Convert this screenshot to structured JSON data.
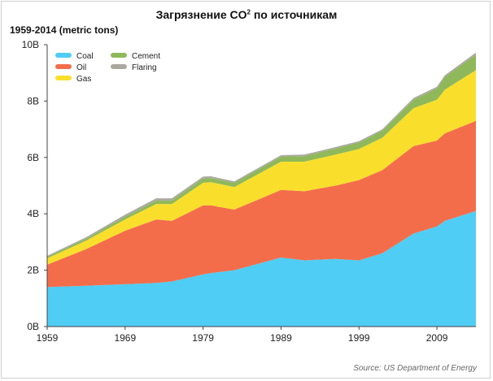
{
  "header": {
    "title_main": "Загрязнение CO",
    "title_sup": "2",
    "title_tail": " по источникам",
    "subtitle": "1959-2014 (metric tons)"
  },
  "source": "Source: US Department of Energy",
  "colors": {
    "Coal": "#4fcdf4",
    "Oil": "#f46d4b",
    "Gas": "#f9df2c",
    "Cement": "#8fb85a",
    "Flaring": "#a9a9a0"
  },
  "chart_data": {
    "type": "area",
    "stacked": true,
    "title": "Загрязнение CO2 по источникам",
    "subtitle": "1959-2014 (metric tons)",
    "xlim": [
      1959,
      2014
    ],
    "ylim": [
      0,
      10
    ],
    "x_ticks": [
      1959,
      1969,
      1979,
      1989,
      1999,
      2009
    ],
    "x_tick_labels": [
      "1959",
      "1969",
      "1979",
      "1989",
      "1999",
      "2009"
    ],
    "y_ticks": [
      0,
      2,
      4,
      6,
      8,
      10
    ],
    "y_tick_labels": [
      "0B",
      "2B",
      "4B",
      "6B",
      "8B",
      "10B"
    ],
    "legend_position": "top-left",
    "x": [
      1959,
      1964,
      1969,
      1973,
      1975,
      1979,
      1980,
      1983,
      1989,
      1992,
      1996,
      1999,
      2002,
      2006,
      2009,
      2010,
      2014
    ],
    "series": [
      {
        "name": "Coal",
        "values": [
          1.4,
          1.45,
          1.5,
          1.55,
          1.6,
          1.85,
          1.9,
          2.0,
          2.45,
          2.35,
          2.4,
          2.35,
          2.6,
          3.3,
          3.55,
          3.75,
          4.1
        ]
      },
      {
        "name": "Oil",
        "values": [
          0.8,
          1.3,
          1.9,
          2.25,
          2.15,
          2.45,
          2.4,
          2.15,
          2.4,
          2.45,
          2.6,
          2.85,
          2.95,
          3.1,
          3.05,
          3.1,
          3.2
        ]
      },
      {
        "name": "Gas",
        "values": [
          0.22,
          0.3,
          0.4,
          0.55,
          0.6,
          0.8,
          0.82,
          0.8,
          1.0,
          1.05,
          1.1,
          1.1,
          1.15,
          1.35,
          1.45,
          1.55,
          1.8
        ]
      },
      {
        "name": "Cement",
        "values": [
          0.05,
          0.07,
          0.1,
          0.12,
          0.12,
          0.15,
          0.15,
          0.15,
          0.18,
          0.2,
          0.22,
          0.23,
          0.25,
          0.3,
          0.4,
          0.45,
          0.55
        ]
      },
      {
        "name": "Flaring",
        "values": [
          0.04,
          0.05,
          0.07,
          0.08,
          0.08,
          0.07,
          0.06,
          0.05,
          0.05,
          0.05,
          0.05,
          0.05,
          0.05,
          0.06,
          0.06,
          0.06,
          0.07
        ]
      }
    ],
    "legend": [
      {
        "name": "Coal",
        "column": 0,
        "row": 0
      },
      {
        "name": "Oil",
        "column": 0,
        "row": 1
      },
      {
        "name": "Gas",
        "column": 0,
        "row": 2
      },
      {
        "name": "Cement",
        "column": 1,
        "row": 0
      },
      {
        "name": "Flaring",
        "column": 1,
        "row": 1
      }
    ]
  }
}
